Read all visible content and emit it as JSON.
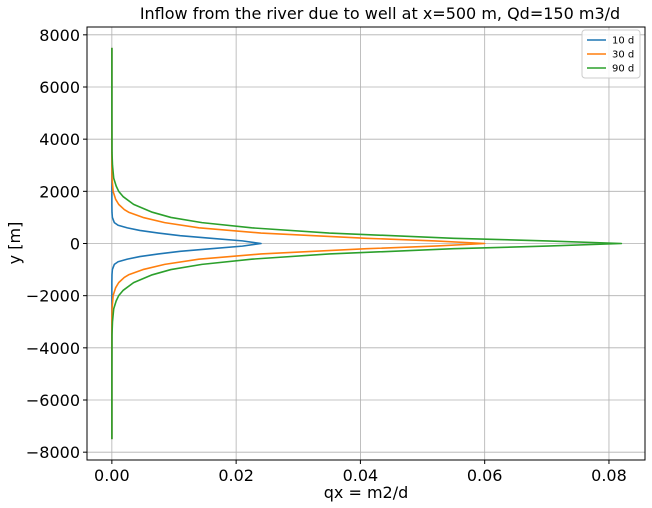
{
  "chart_data": {
    "type": "line",
    "title": "Inflow from the river due to well at x=500 m, Qd=150 m3/d",
    "xlabel": "qx = m2/d",
    "ylabel": "y [m]",
    "xlim": [
      -0.004,
      0.0858
    ],
    "ylim": [
      -8300,
      8300
    ],
    "xticks": [
      0.0,
      0.02,
      0.04,
      0.06,
      0.08
    ],
    "xtick_labels": [
      "0.00",
      "0.02",
      "0.04",
      "0.06",
      "0.08"
    ],
    "yticks": [
      -8000,
      -6000,
      -4000,
      -2000,
      0,
      2000,
      4000,
      6000,
      8000
    ],
    "ytick_labels": [
      "−8000",
      "−6000",
      "−4000",
      "−2000",
      "0",
      "2000",
      "4000",
      "6000",
      "8000"
    ],
    "grid": true,
    "legend_position": "top-right",
    "series": [
      {
        "name": "10 d",
        "color": "#1f77b4",
        "y": [
          -7500,
          -5000,
          -3000,
          -2000,
          -1500,
          -1200,
          -1000,
          -800,
          -700,
          -600,
          -500,
          -400,
          -300,
          -200,
          -100,
          0,
          100,
          200,
          300,
          400,
          500,
          600,
          700,
          800,
          1000,
          1200,
          1500,
          2000,
          3000,
          5000,
          7500
        ],
        "qx": [
          0.0,
          0.0,
          0.0,
          0.0,
          0.0,
          2e-05,
          8e-05,
          0.0004,
          0.001,
          0.0025,
          0.0045,
          0.0075,
          0.011,
          0.016,
          0.021,
          0.024,
          0.021,
          0.016,
          0.011,
          0.0075,
          0.0045,
          0.0025,
          0.001,
          0.0004,
          8e-05,
          2e-05,
          0.0,
          0.0,
          0.0,
          0.0,
          0.0
        ]
      },
      {
        "name": "30 d",
        "color": "#ff7f0e",
        "y": [
          -7500,
          -5000,
          -3000,
          -2500,
          -2000,
          -1700,
          -1500,
          -1300,
          -1200,
          -1000,
          -800,
          -600,
          -400,
          -200,
          -100,
          0,
          100,
          200,
          400,
          600,
          800,
          1000,
          1200,
          1300,
          1500,
          1700,
          2000,
          2500,
          3000,
          5000,
          7500
        ],
        "qx": [
          0.0,
          0.0,
          0.0,
          3e-05,
          0.0002,
          0.0006,
          0.0011,
          0.002,
          0.0027,
          0.005,
          0.0085,
          0.014,
          0.024,
          0.041,
          0.052,
          0.06,
          0.052,
          0.041,
          0.024,
          0.014,
          0.0085,
          0.005,
          0.0027,
          0.002,
          0.0011,
          0.0006,
          0.0002,
          3e-05,
          0.0,
          0.0,
          0.0
        ]
      },
      {
        "name": "90 d",
        "color": "#2ca02c",
        "y": [
          -7500,
          -5000,
          -3500,
          -3000,
          -2500,
          -2200,
          -2000,
          -1800,
          -1500,
          -1200,
          -1000,
          -800,
          -600,
          -400,
          -200,
          -100,
          0,
          100,
          200,
          400,
          600,
          800,
          1000,
          1200,
          1500,
          1800,
          2000,
          2200,
          2500,
          3000,
          3500,
          5000,
          7500
        ],
        "qx": [
          0.0,
          0.0,
          2e-05,
          0.0001,
          0.0003,
          0.0007,
          0.0011,
          0.0018,
          0.0035,
          0.0065,
          0.0095,
          0.0145,
          0.0225,
          0.035,
          0.055,
          0.07,
          0.082,
          0.07,
          0.055,
          0.035,
          0.0225,
          0.0145,
          0.0095,
          0.0065,
          0.0035,
          0.0018,
          0.0011,
          0.0007,
          0.0003,
          0.0001,
          2e-05,
          0.0,
          0.0
        ]
      }
    ]
  }
}
